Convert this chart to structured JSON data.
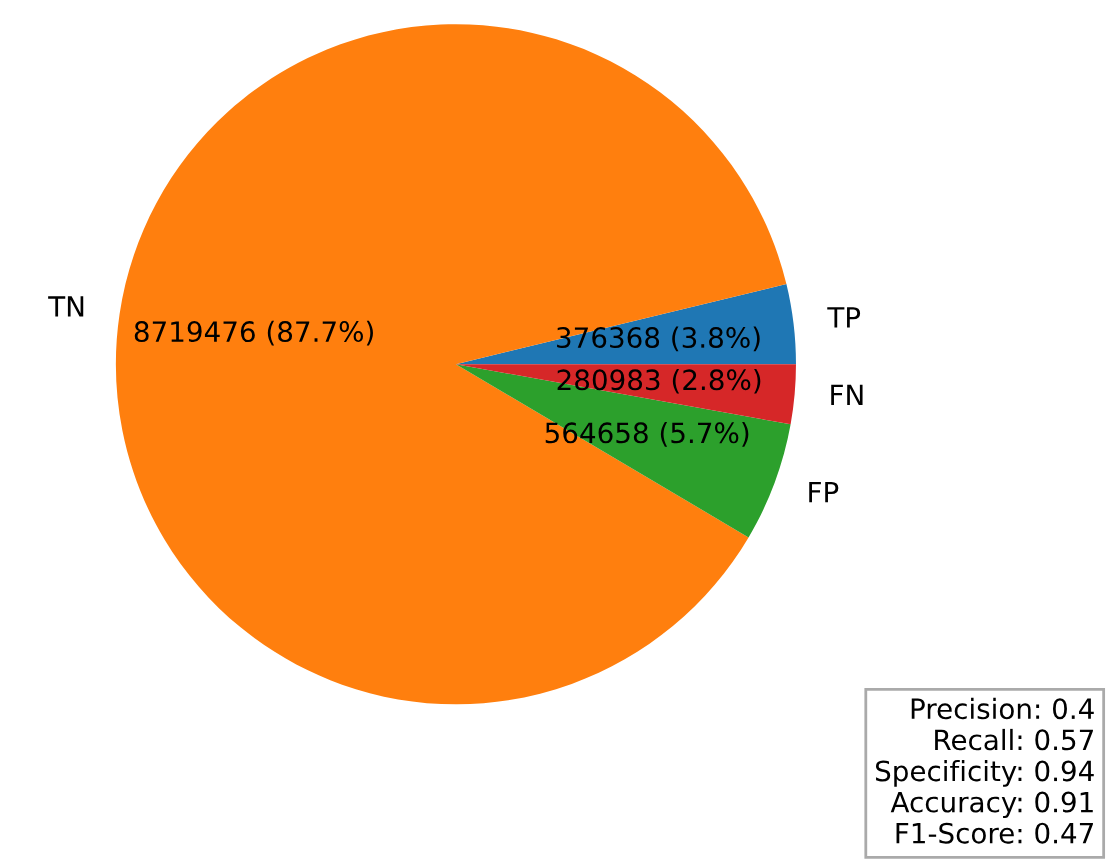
{
  "chart_data": {
    "type": "pie",
    "categories": [
      "TP",
      "TN",
      "FP",
      "FN"
    ],
    "values": [
      376368,
      8719476,
      564658,
      280983
    ],
    "colors": [
      "#1f77b4",
      "#ff7f0e",
      "#2ca02c",
      "#d62728"
    ],
    "value_labels": [
      "376368 (3.8%)",
      "8719476 (87.7%)",
      "564658 (5.7%)",
      "280983 (2.8%)"
    ],
    "annotations": [
      "Precision: 0.4",
      "Recall: 0.57",
      "Specificity: 0.94",
      "Accuracy: 0.91",
      "F1-Score: 0.47"
    ]
  }
}
